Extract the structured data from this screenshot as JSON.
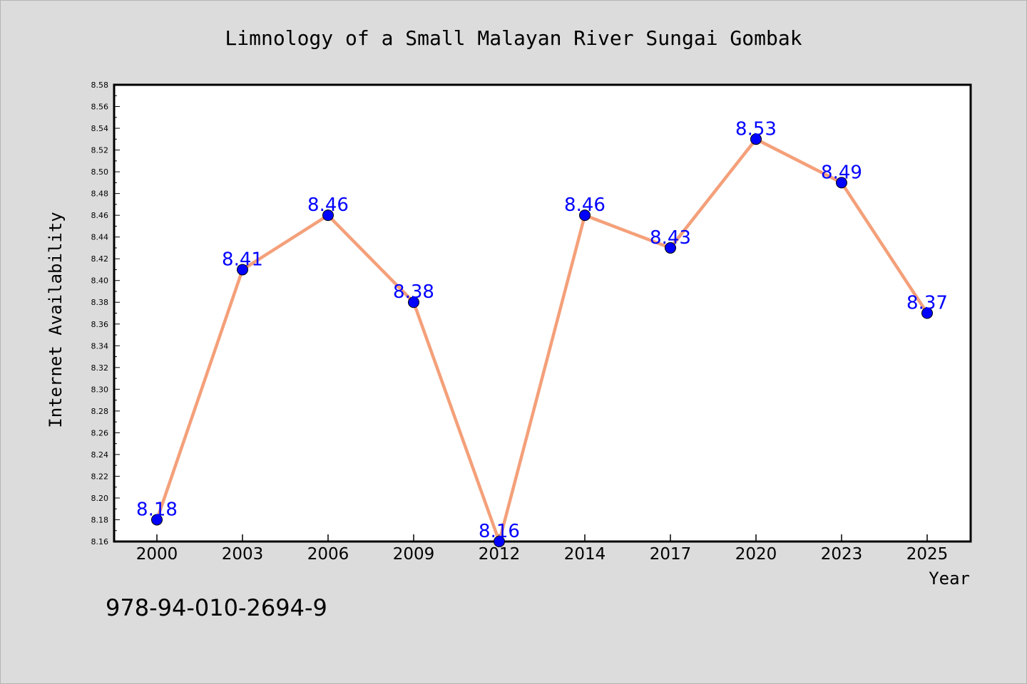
{
  "chart_data": {
    "type": "line",
    "title": "Limnology of a Small Malayan River Sungai Gombak",
    "xlabel": "Year",
    "ylabel": "Internet Availability",
    "categories": [
      "2000",
      "2003",
      "2006",
      "2009",
      "2012",
      "2014",
      "2017",
      "2020",
      "2023",
      "2025"
    ],
    "series": [
      {
        "values": [
          8.18,
          8.41,
          8.46,
          8.38,
          8.16,
          8.46,
          8.43,
          8.53,
          8.49,
          8.37
        ]
      }
    ],
    "data_labels": [
      "8.18",
      "8.41",
      "8.46",
      "8.38",
      "8.16",
      "8.46",
      "8.43",
      "8.53",
      "8.49",
      "8.37"
    ],
    "ylim": [
      8.16,
      8.58
    ],
    "ytick_step": 0.02,
    "ytick_labels": [
      "8.16",
      "8.18",
      "8.20",
      "8.22",
      "8.24",
      "8.26",
      "8.28",
      "8.30",
      "8.32",
      "8.34",
      "8.36",
      "8.38",
      "8.40",
      "8.42",
      "8.44",
      "8.46",
      "8.48",
      "8.50",
      "8.52",
      "8.54",
      "8.56",
      "8.58"
    ],
    "grid": false,
    "colors": {
      "line": "#f4a07a",
      "marker": "#0000ff",
      "data_label": "#0000ff",
      "plot_background": "#ffffff",
      "page_background": "#dcdcdc"
    }
  },
  "footer": {
    "isbn": "978-94-010-2694-9"
  }
}
